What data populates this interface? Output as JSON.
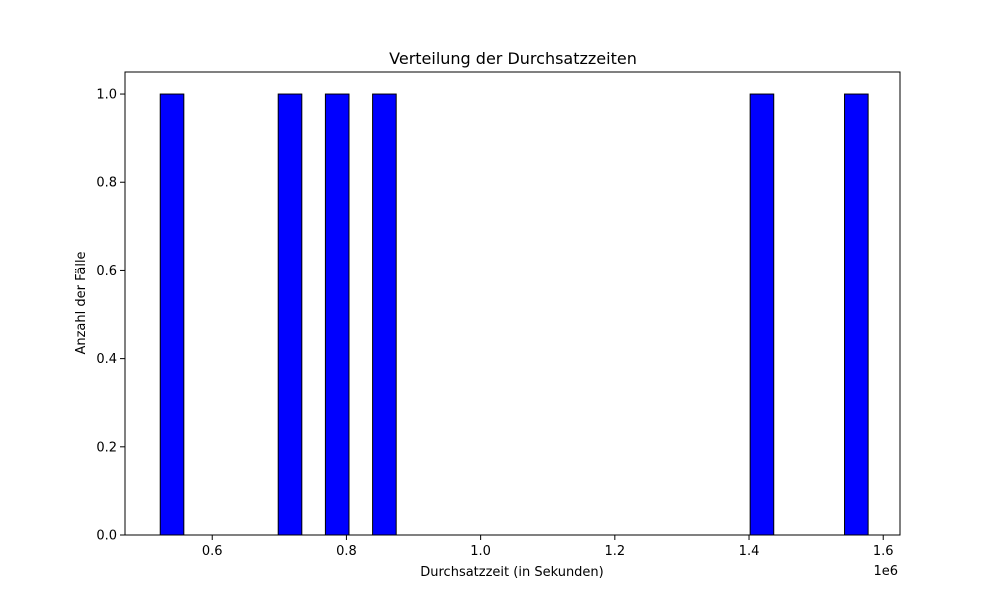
{
  "chart_data": {
    "type": "bar",
    "title": "Verteilung der Durchsatzzeiten",
    "xlabel": "Durchsatzzeit (in Sekunden)",
    "ylabel": "Anzahl der Fälle",
    "x_offset_label": "1e6",
    "xlim": [
      0.47,
      1.625
    ],
    "ylim": [
      0,
      1.05
    ],
    "x_ticks": [
      0.6,
      0.8,
      1.0,
      1.2,
      1.4,
      1.6
    ],
    "x_tick_labels": [
      "0.6",
      "0.8",
      "1.0",
      "1.2",
      "1.4",
      "1.6"
    ],
    "y_ticks": [
      0.0,
      0.2,
      0.4,
      0.6,
      0.8,
      1.0
    ],
    "y_tick_labels": [
      "0.0",
      "0.2",
      "0.4",
      "0.6",
      "0.8",
      "1.0"
    ],
    "bin_range": [
      0.5225,
      1.5775
    ],
    "bin_count": 30,
    "bin_counts": [
      1,
      0,
      0,
      0,
      0,
      1,
      0,
      1,
      0,
      1,
      0,
      0,
      0,
      0,
      0,
      0,
      0,
      0,
      0,
      0,
      0,
      0,
      0,
      0,
      0,
      1,
      0,
      0,
      0,
      1
    ],
    "bar_color": "#0000ff",
    "edge_color": "#000000",
    "grid": false
  }
}
